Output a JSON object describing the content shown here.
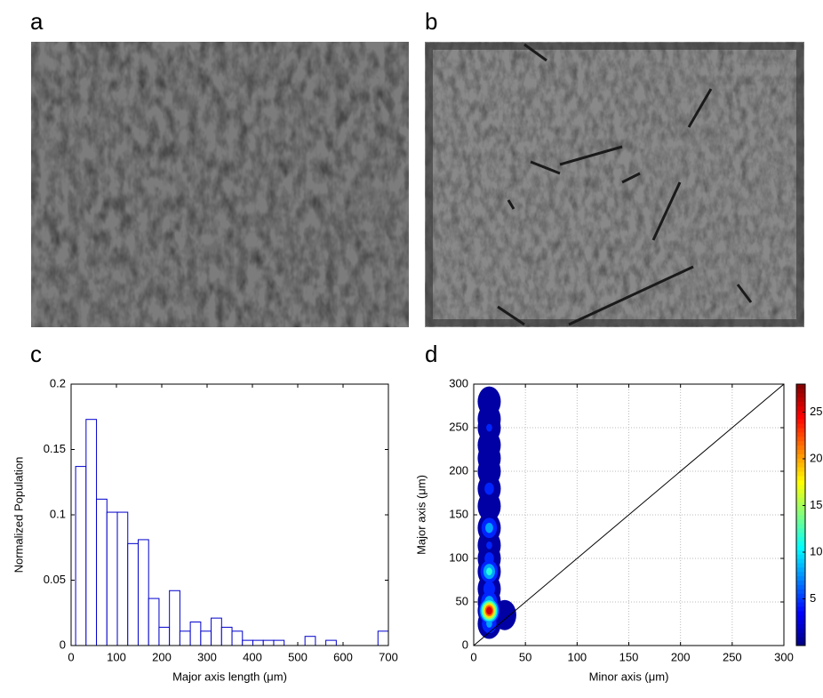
{
  "images": [
    {
      "label": "a"
    },
    {
      "label": "b"
    }
  ],
  "chart_data": [
    {
      "type": "histogram",
      "panel_label": "c",
      "xlabel": "Major axis length (μm)",
      "ylabel": "Normalized Population",
      "color": "#0000cc",
      "bins": [
        10,
        33,
        56,
        79,
        102,
        125,
        148,
        171,
        194,
        217,
        240,
        263,
        286,
        309,
        332,
        355,
        378,
        401,
        424,
        447,
        470,
        493,
        516,
        539,
        562,
        585,
        608,
        631,
        654,
        677,
        700
      ],
      "values": [
        0.137,
        0.173,
        0.112,
        0.102,
        0.102,
        0.078,
        0.081,
        0.036,
        0.014,
        0.042,
        0.011,
        0.018,
        0.011,
        0.021,
        0.014,
        0.011,
        0.004,
        0.004,
        0.004,
        0.004,
        0,
        0,
        0.007,
        0,
        0.004,
        0,
        0,
        0,
        0,
        0.011
      ],
      "xlim": [
        0,
        700
      ],
      "xticks": [
        0,
        100,
        200,
        300,
        400,
        500,
        600,
        700
      ],
      "ylim": [
        0,
        0.2
      ],
      "yticks": [
        0,
        0.05,
        0.1,
        0.15,
        0.2
      ]
    },
    {
      "type": "contour",
      "panel_label": "d",
      "xlabel": "Minor axis (μm)",
      "ylabel": "Major axis (μm)",
      "x": [
        15,
        15,
        15,
        15,
        15,
        15,
        15,
        15,
        15,
        15,
        15,
        15,
        15,
        15,
        30,
        15,
        15
      ],
      "y": [
        280,
        260,
        250,
        230,
        215,
        200,
        180,
        160,
        135,
        115,
        100,
        85,
        65,
        50,
        35,
        25,
        40
      ],
      "values": [
        1,
        2,
        4,
        2,
        3,
        2,
        5,
        3,
        9,
        4,
        5,
        12,
        6,
        10,
        2,
        8,
        28
      ],
      "xlim": [
        0,
        300
      ],
      "xticks": [
        0,
        50,
        100,
        150,
        200,
        250,
        300
      ],
      "ylim": [
        0,
        300
      ],
      "yticks": [
        0,
        50,
        100,
        150,
        200,
        250,
        300
      ],
      "grid": true,
      "diagonal": true,
      "clim": [
        0,
        28
      ],
      "cticks": [
        5,
        10,
        15,
        20,
        25
      ],
      "colormap": "jet"
    }
  ]
}
